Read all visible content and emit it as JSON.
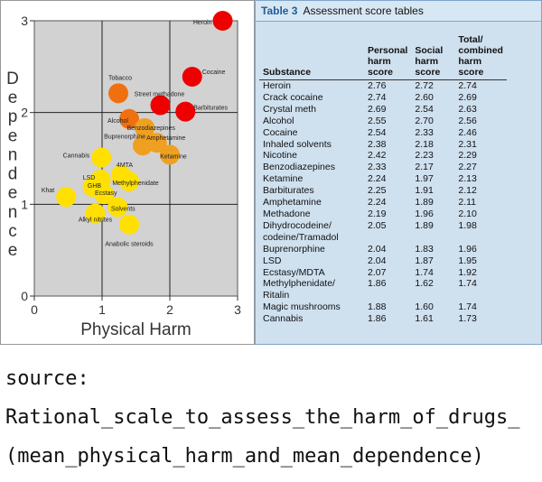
{
  "chart_data": {
    "type": "scatter",
    "xlabel": "Physical Harm",
    "ylabel": "Dependence",
    "xlim": [
      0,
      3
    ],
    "ylim": [
      0,
      3
    ],
    "x_ticks": [
      "0",
      "1",
      "2",
      "3"
    ],
    "y_ticks": [
      "0",
      "1",
      "2",
      "3"
    ],
    "grid": true,
    "points": [
      {
        "label": "Heroin",
        "x": 2.78,
        "y": 3.0,
        "color": "#ee0000"
      },
      {
        "label": "Cocaine",
        "x": 2.33,
        "y": 2.39,
        "color": "#ee0000"
      },
      {
        "label": "Street methadone",
        "x": 1.86,
        "y": 2.08,
        "color": "#ee0000"
      },
      {
        "label": "Barbiturates",
        "x": 2.23,
        "y": 2.01,
        "color": "#ee0000"
      },
      {
        "label": "Tobacco",
        "x": 1.24,
        "y": 2.21,
        "color": "#f07010"
      },
      {
        "label": "Alcohol",
        "x": 1.4,
        "y": 1.93,
        "color": "#f07010"
      },
      {
        "label": "Benzodiazepines",
        "x": 1.63,
        "y": 1.83,
        "color": "#f0a020"
      },
      {
        "label": "Buprenorphine",
        "x": 1.6,
        "y": 1.64,
        "color": "#f0a020"
      },
      {
        "label": "Amphetamine",
        "x": 1.81,
        "y": 1.67,
        "color": "#f0a020"
      },
      {
        "label": "Ketamine",
        "x": 2.0,
        "y": 1.54,
        "color": "#f0a020"
      },
      {
        "label": "Cannabis",
        "x": 0.99,
        "y": 1.51,
        "color": "#ffe000"
      },
      {
        "label": "4MTA",
        "x": 1.28,
        "y": 1.32,
        "color": "#ffe000"
      },
      {
        "label": "Methylphenidate",
        "x": 1.4,
        "y": 1.25,
        "color": "#ffe000"
      },
      {
        "label": "LSD",
        "x": 0.98,
        "y": 1.27,
        "color": "#ffe000"
      },
      {
        "label": "GHB",
        "x": 0.86,
        "y": 1.19,
        "color": "#ffe000"
      },
      {
        "label": "Ecstasy",
        "x": 1.03,
        "y": 1.11,
        "color": "#ffe000"
      },
      {
        "label": "Khat",
        "x": 0.47,
        "y": 1.08,
        "color": "#ffe000"
      },
      {
        "label": "Solvents",
        "x": 1.23,
        "y": 0.97,
        "color": "#ffe000"
      },
      {
        "label": "Alkyl nitrites",
        "x": 0.9,
        "y": 0.9,
        "color": "#ffe000"
      },
      {
        "label": "Anabolic steroids",
        "x": 1.4,
        "y": 0.78,
        "color": "#ffe000"
      }
    ]
  },
  "table": {
    "caption_number": "Table 3",
    "caption_text": "Assessment score tables",
    "headers": [
      "Substance",
      "Personal harm score",
      "Social harm score",
      "Total/ combined harm score"
    ],
    "header_lines": [
      [
        "Substance"
      ],
      [
        "Personal",
        "harm",
        "score"
      ],
      [
        "Social",
        "harm",
        "score"
      ],
      [
        "Total/",
        "combined",
        "harm score"
      ]
    ],
    "rows": [
      {
        "substance": [
          "Heroin"
        ],
        "personal": "2.76",
        "social": "2.72",
        "total": "2.74"
      },
      {
        "substance": [
          "Crack cocaine"
        ],
        "personal": "2.74",
        "social": "2.60",
        "total": "2.69"
      },
      {
        "substance": [
          "Crystal meth"
        ],
        "personal": "2.69",
        "social": "2.54",
        "total": "2.63"
      },
      {
        "substance": [
          "Alcohol"
        ],
        "personal": "2.55",
        "social": "2.70",
        "total": "2.56"
      },
      {
        "substance": [
          "Cocaine"
        ],
        "personal": "2.54",
        "social": "2.33",
        "total": "2.46"
      },
      {
        "substance": [
          "Inhaled solvents"
        ],
        "personal": "2.38",
        "social": "2.18",
        "total": "2.31"
      },
      {
        "substance": [
          "Nicotine"
        ],
        "personal": "2.42",
        "social": "2.23",
        "total": "2.29"
      },
      {
        "substance": [
          "Benzodiazepines"
        ],
        "personal": "2.33",
        "social": "2.17",
        "total": "2.27"
      },
      {
        "substance": [
          "Ketamine"
        ],
        "personal": "2.24",
        "social": "1.97",
        "total": "2.13"
      },
      {
        "substance": [
          "Barbiturates"
        ],
        "personal": "2.25",
        "social": "1.91",
        "total": "2.12"
      },
      {
        "substance": [
          "Amphetamine"
        ],
        "personal": "2.24",
        "social": "1.89",
        "total": "2.11"
      },
      {
        "substance": [
          "Methadone"
        ],
        "personal": "2.19",
        "social": "1.96",
        "total": "2.10"
      },
      {
        "substance": [
          "Dihydrocodeine/",
          "codeine/Tramadol"
        ],
        "personal": "2.05",
        "social": "1.89",
        "total": "1.98"
      },
      {
        "substance": [
          "Buprenorphine"
        ],
        "personal": "2.04",
        "social": "1.83",
        "total": "1.96"
      },
      {
        "substance": [
          "LSD"
        ],
        "personal": "2.04",
        "social": "1.87",
        "total": "1.95"
      },
      {
        "substance": [
          "Ecstasy/MDTA"
        ],
        "personal": "2.07",
        "social": "1.74",
        "total": "1.92"
      },
      {
        "substance": [
          "Methylphenidate/",
          "Ritalin"
        ],
        "personal": "1.86",
        "social": "1.62",
        "total": "1.74"
      },
      {
        "substance": [
          "Magic mushrooms"
        ],
        "personal": "1.88",
        "social": "1.60",
        "total": "1.74"
      },
      {
        "substance": [
          "Cannabis"
        ],
        "personal": "1.86",
        "social": "1.61",
        "total": "1.73"
      }
    ]
  },
  "source": {
    "label": "source:",
    "line1": "Rational_scale_to_assess_the_harm_of_drugs_",
    "line2": "(mean_physical_harm_and_mean_dependence)"
  }
}
